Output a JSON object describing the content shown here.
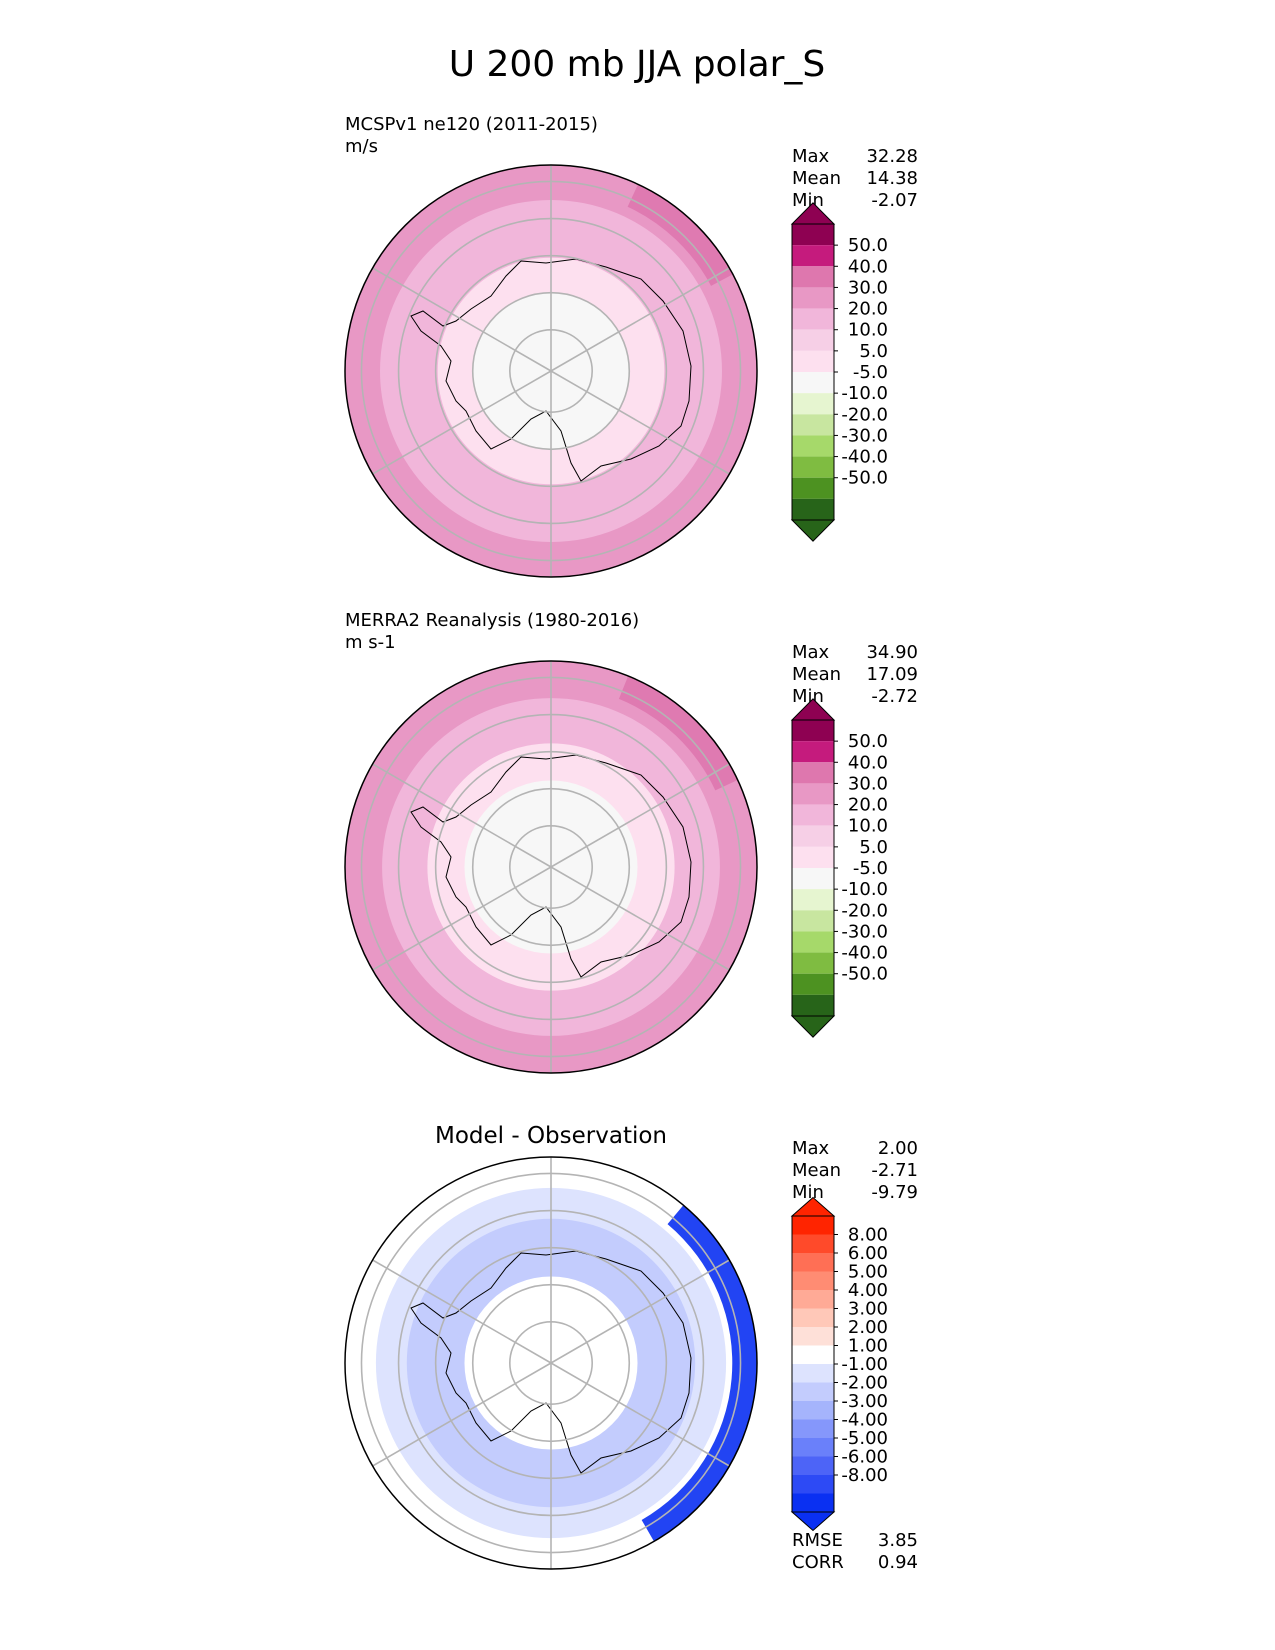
{
  "figure": {
    "title": "U 200 mb JJA polar_S"
  },
  "colors": {
    "test_ref_levels": [
      "#8e0152",
      "#c51b7d",
      "#de77ae",
      "#e898c5",
      "#f1b6da",
      "#f6cfe6",
      "#fde0ef",
      "#f7f7f7",
      "#e6f5d0",
      "#c8e6a0",
      "#a6d96a",
      "#7fbc41",
      "#4d9221",
      "#276419"
    ],
    "diff_levels": [
      "#ff2400",
      "#ff4a2a",
      "#ff6f55",
      "#ff8c73",
      "#ffaa96",
      "#ffc8b8",
      "#fee0d8",
      "#ffffff",
      "#dde3fe",
      "#c3ccfd",
      "#a5b4fc",
      "#8597fb",
      "#6a80fa",
      "#4d64f7",
      "#2d4af5",
      "#0a30f2"
    ]
  },
  "chart_data": [
    {
      "type": "heatmap",
      "projection": "south-polar-stereographic",
      "title": "MCSPv1 ne120 (2011-2015)",
      "units": "m/s",
      "stats": {
        "Max": "32.28",
        "Mean": "14.38",
        "Min": "-2.07"
      },
      "colorbar_ticks": [
        "50.0",
        "40.0",
        "30.0",
        "20.0",
        "10.0",
        "5.0",
        "-5.0",
        "-10.0",
        "-20.0",
        "-30.0",
        "-40.0",
        "-50.0"
      ],
      "colorbar_extend": "both",
      "rings": [
        {
          "level": "20-30",
          "outer": 1.0,
          "color": "#e898c5"
        },
        {
          "level": "10-20",
          "outer": 0.83,
          "color": "#f1b6da"
        },
        {
          "level": "5-10",
          "outer": 0.55,
          "color": "#fde0ef"
        },
        {
          "level": "-5-5",
          "outer": 0.38,
          "color": "#f7f7f7"
        }
      ],
      "jet_segment": {
        "level": "30-40",
        "from_bearing_deg": 25,
        "to_bearing_deg": 62,
        "color": "#de77ae"
      }
    },
    {
      "type": "heatmap",
      "projection": "south-polar-stereographic",
      "title": "MERRA2 Reanalysis (1980-2016)",
      "units": "m s-1",
      "stats": {
        "Max": "34.90",
        "Mean": "17.09",
        "Min": "-2.72"
      },
      "colorbar_ticks": [
        "50.0",
        "40.0",
        "30.0",
        "20.0",
        "10.0",
        "5.0",
        "-5.0",
        "-10.0",
        "-20.0",
        "-30.0",
        "-40.0",
        "-50.0"
      ],
      "colorbar_extend": "both",
      "rings": [
        {
          "level": "20-30",
          "outer": 1.0,
          "color": "#e898c5"
        },
        {
          "level": "10-20",
          "outer": 0.82,
          "color": "#f1b6da"
        },
        {
          "level": "5-10",
          "outer": 0.6,
          "color": "#fde0ef"
        },
        {
          "level": "-5-5",
          "outer": 0.42,
          "color": "#f7f7f7"
        }
      ],
      "jet_segment": {
        "level": "30-40",
        "from_bearing_deg": 22,
        "to_bearing_deg": 65,
        "color": "#de77ae"
      }
    },
    {
      "type": "heatmap",
      "projection": "south-polar-stereographic",
      "title": "Model - Observation",
      "units": "",
      "stats": {
        "Max": "2.00",
        "Mean": "-2.71",
        "Min": "-9.79"
      },
      "colorbar_ticks": [
        "8.00",
        "6.00",
        "5.00",
        "4.00",
        "3.00",
        "2.00",
        "1.00",
        "-1.00",
        "-2.00",
        "-3.00",
        "-4.00",
        "-5.00",
        "-6.00",
        "-8.00"
      ],
      "colorbar_extend": "both",
      "metrics": {
        "RMSE": "3.85",
        "CORR": "0.94"
      },
      "rings": [
        {
          "level": "-1-1",
          "outer": 1.0,
          "color": "#ffffff"
        },
        {
          "level": "-2--1",
          "outer": 0.85,
          "color": "#dde3fe"
        },
        {
          "level": "-3--2",
          "outer": 0.7,
          "color": "#c3ccfd"
        },
        {
          "level": "-1-1",
          "outer": 0.42,
          "color": "#ffffff"
        }
      ],
      "jet_segment": {
        "level": "-9--8",
        "from_bearing_deg": 40,
        "to_bearing_deg": 150,
        "color": "#0a30f2"
      }
    }
  ]
}
